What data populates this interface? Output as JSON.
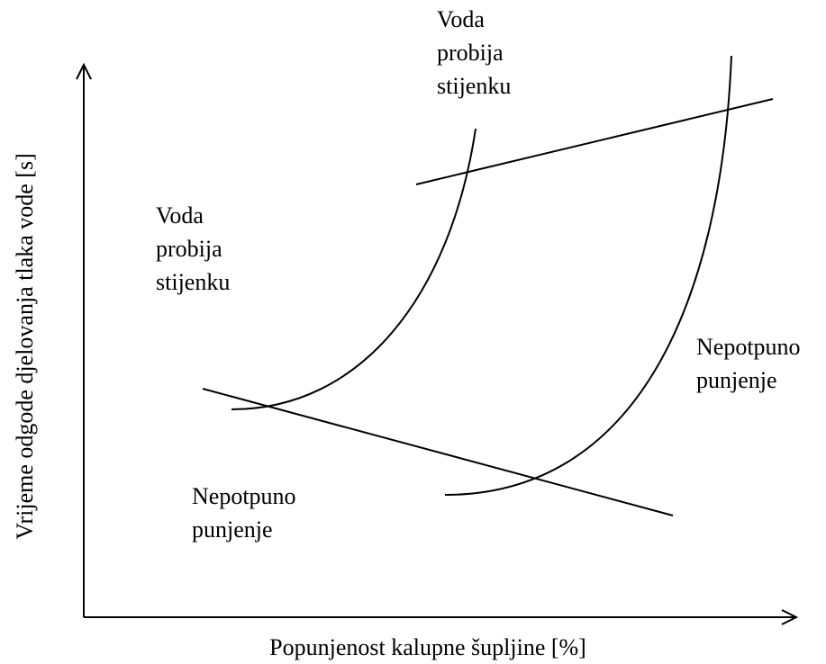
{
  "axes": {
    "x_label": "Popunjenost kalupne šupljine [%]",
    "y_label": "Vrijeme odgode djelovanja tlaka vode [s]"
  },
  "regions": [
    {
      "lines": [
        "Voda",
        "probija",
        "stijenku"
      ]
    },
    {
      "lines": [
        "Voda",
        "probija",
        "stijenku"
      ]
    },
    {
      "lines": [
        "Nepotpuno",
        "punjenje"
      ]
    },
    {
      "lines": [
        "Nepotpuno",
        "punjenje"
      ]
    }
  ]
}
